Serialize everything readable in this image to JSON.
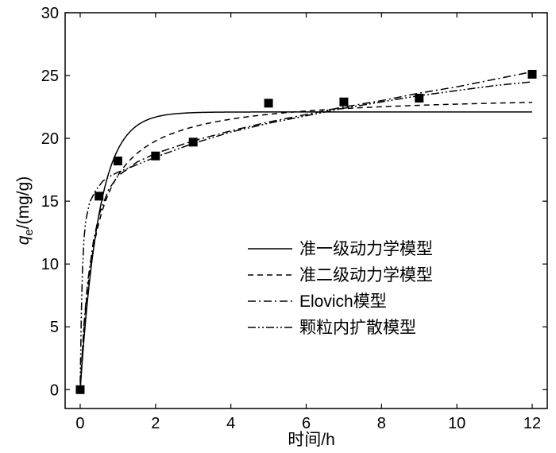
{
  "chart_data": {
    "type": "line",
    "xlabel": "时间/h",
    "ylabel": {
      "symbol": "q",
      "subscript": "e",
      "unit": "/(mg/g)"
    },
    "xlim": [
      -0.4,
      12.4
    ],
    "ylim": [
      -1.5,
      30
    ],
    "x_ticks": [
      0,
      2,
      4,
      6,
      8,
      10,
      12
    ],
    "y_ticks": [
      0,
      5,
      10,
      15,
      20,
      25,
      30
    ],
    "grid": false,
    "legend_position": "center-right",
    "experimental": {
      "marker": "square",
      "x": [
        0,
        0.5,
        1,
        2,
        3,
        5,
        7,
        9,
        12
      ],
      "y": [
        0,
        15.4,
        18.2,
        18.6,
        19.7,
        22.8,
        22.9,
        23.2,
        25.1
      ]
    },
    "series": [
      {
        "name": "准一级动力学模型",
        "dash": "solid",
        "model": "pfo",
        "qe": 22.1,
        "k": 2.0
      },
      {
        "name": "准二级动力学模型",
        "dash": "dashed",
        "model": "pso",
        "qe": 23.6,
        "k": 0.11
      },
      {
        "name": "Elovich模型",
        "dash": "dashdot",
        "model": "elovich",
        "points": [
          [
            0.0,
            0.0
          ],
          [
            0.1,
            5.2
          ],
          [
            0.2,
            8.6
          ],
          [
            0.35,
            11.8
          ],
          [
            0.5,
            13.9
          ],
          [
            0.75,
            15.9
          ],
          [
            1.0,
            17.0
          ],
          [
            1.5,
            18.1
          ],
          [
            2.0,
            18.8
          ],
          [
            3.0,
            19.8
          ],
          [
            4.0,
            20.6
          ],
          [
            5.0,
            21.3
          ],
          [
            6.0,
            21.9
          ],
          [
            7.0,
            22.5
          ],
          [
            8.0,
            23.0
          ],
          [
            9.0,
            23.6
          ],
          [
            10.0,
            24.1
          ],
          [
            11.0,
            24.7
          ],
          [
            12.0,
            25.3
          ]
        ]
      },
      {
        "name": "颗粒内扩散模型",
        "dash": "dashdotdot",
        "model": "intraparticle",
        "points": [
          [
            0.0,
            0.5
          ],
          [
            0.03,
            6.0
          ],
          [
            0.06,
            9.5
          ],
          [
            0.1,
            12.0
          ],
          [
            0.15,
            13.5
          ],
          [
            0.25,
            14.9
          ],
          [
            0.4,
            15.8
          ],
          [
            0.6,
            16.6
          ],
          [
            0.8,
            17.0
          ],
          [
            1.0,
            17.3
          ],
          [
            1.5,
            17.9
          ],
          [
            2.0,
            18.5
          ],
          [
            3.0,
            19.6
          ],
          [
            4.0,
            20.5
          ],
          [
            5.0,
            21.2
          ],
          [
            6.0,
            21.8
          ],
          [
            7.0,
            22.4
          ],
          [
            8.0,
            22.9
          ],
          [
            9.0,
            23.4
          ],
          [
            10.0,
            23.8
          ],
          [
            11.0,
            24.2
          ],
          [
            12.0,
            24.5
          ]
        ]
      }
    ]
  }
}
